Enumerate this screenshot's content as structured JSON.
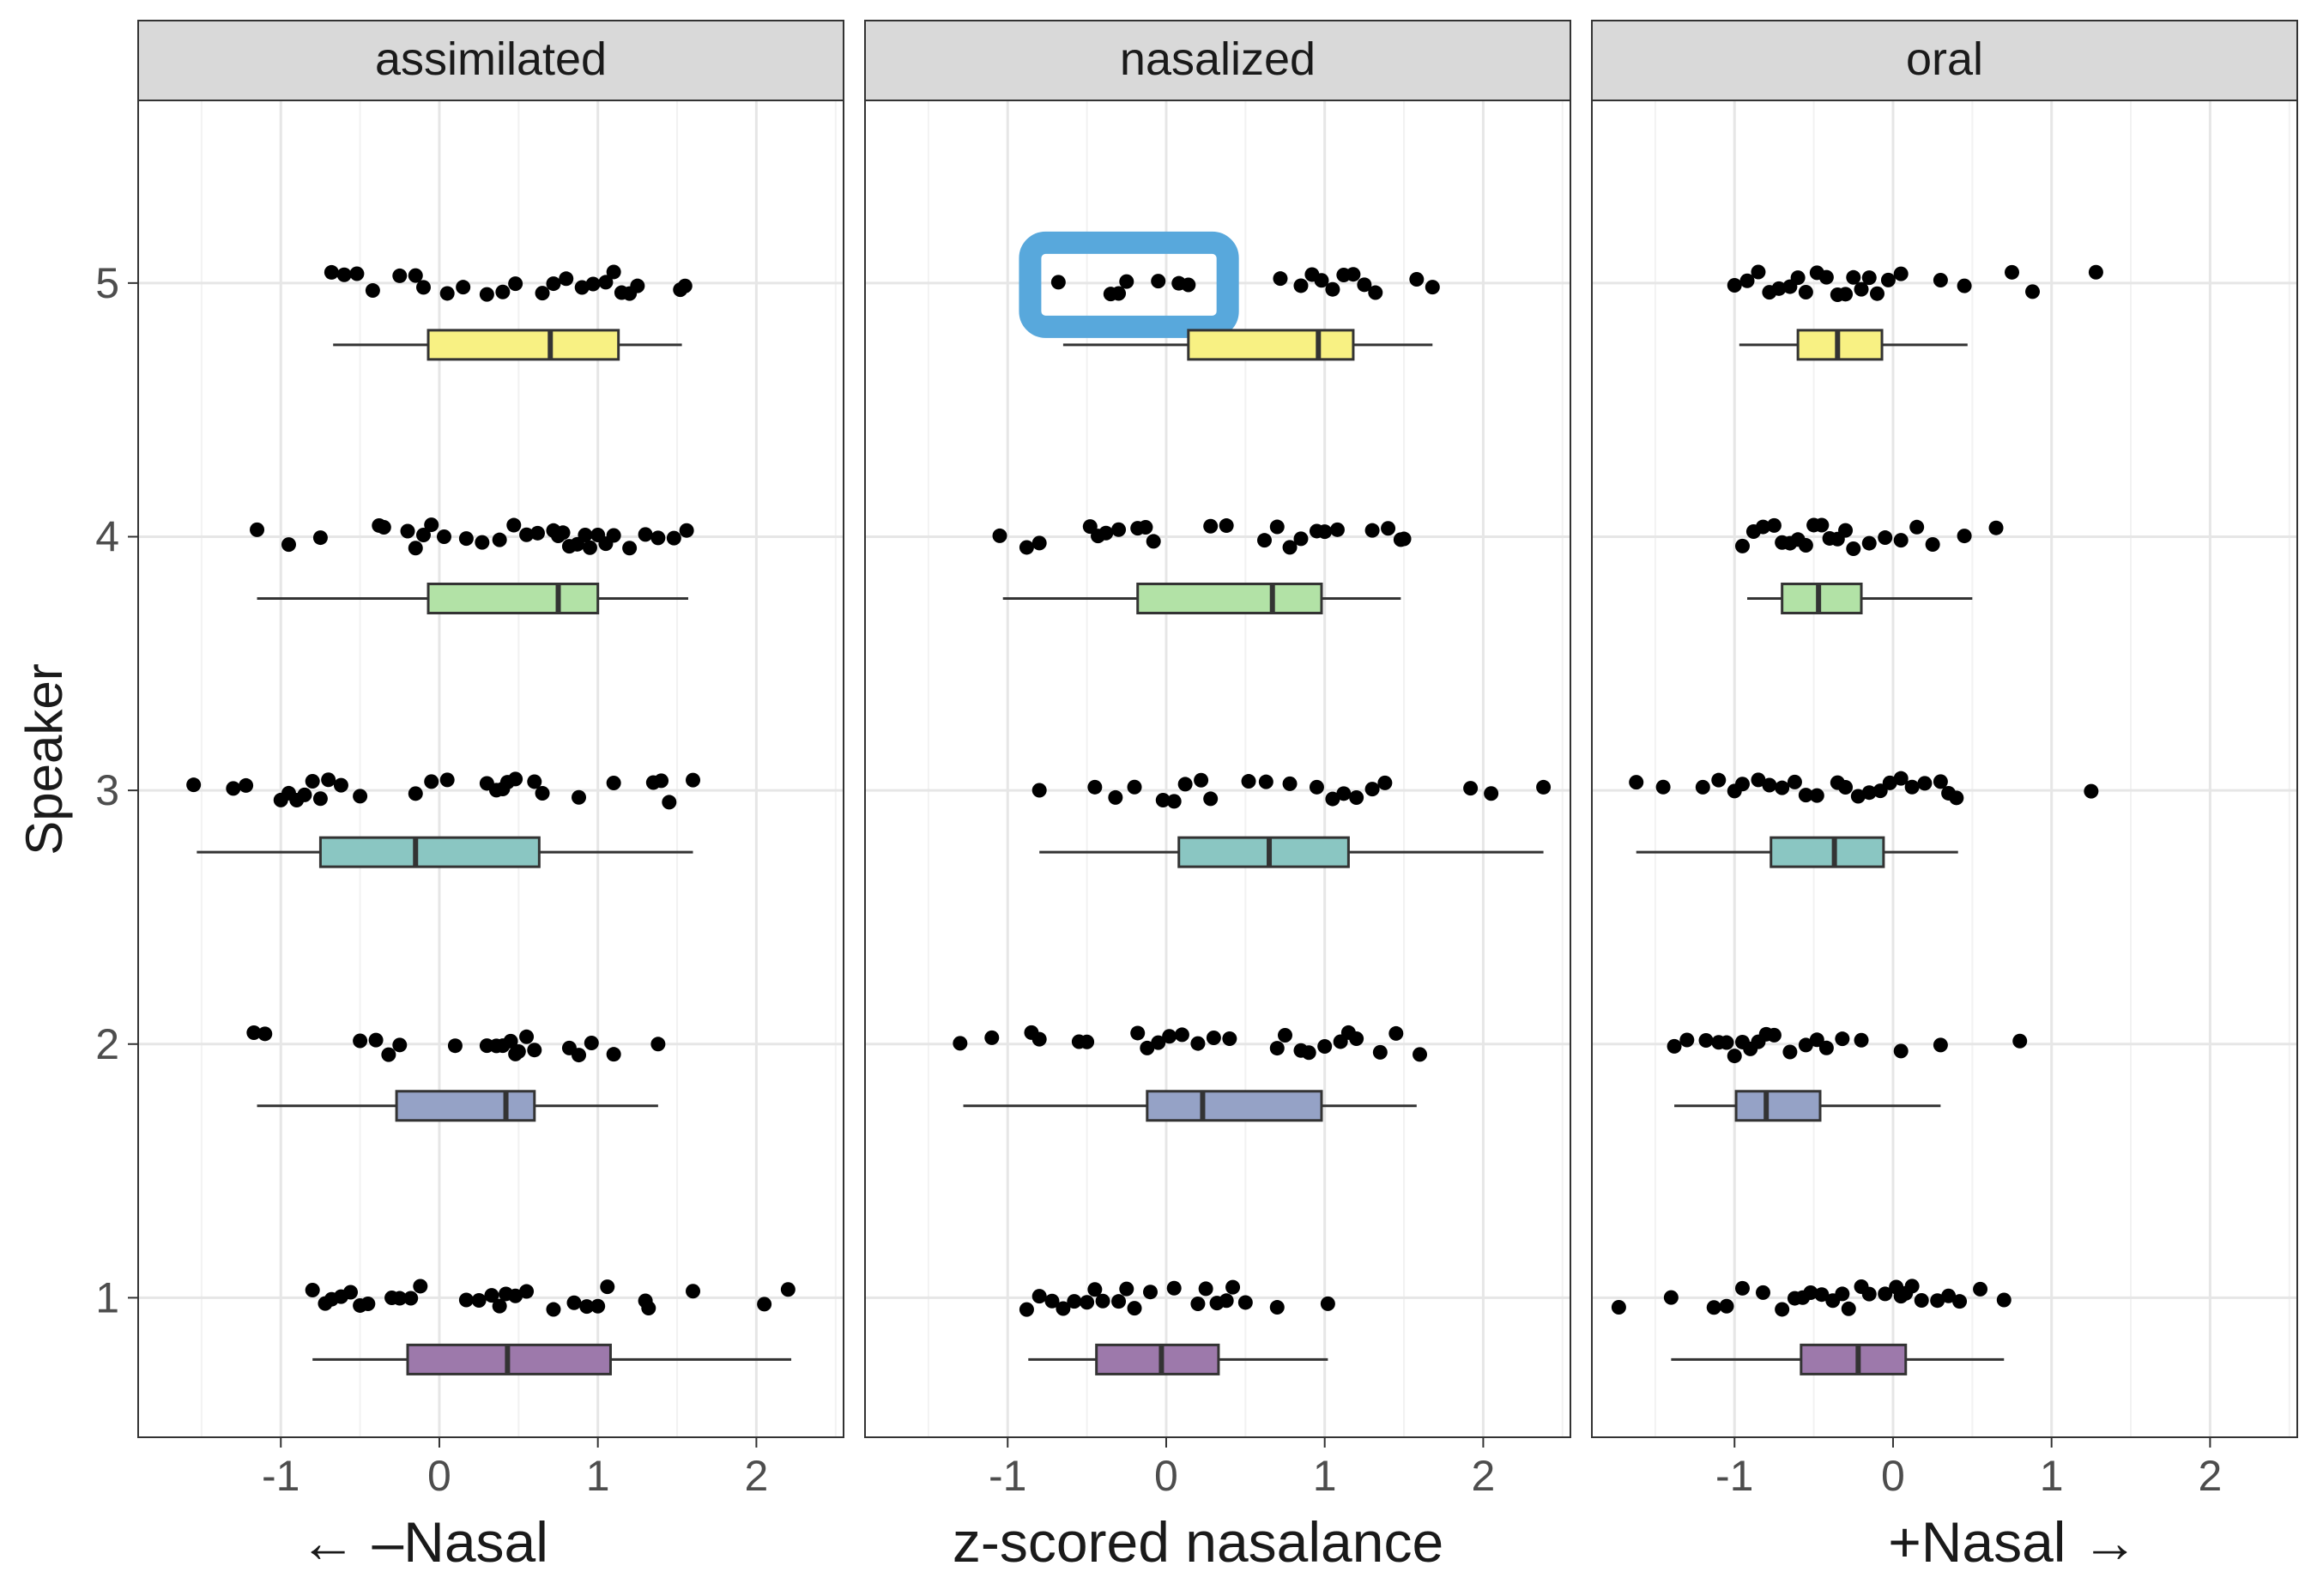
{
  "chart_data": {
    "type": "boxplot",
    "facets": [
      "assimilated",
      "nasalized",
      "oral"
    ],
    "y_title": "Speaker",
    "x_labels": {
      "left": "← –Nasal",
      "center": "z-scored nasalance",
      "right": "+Nasal →"
    },
    "x_ticks": [
      -1,
      0,
      1,
      2
    ],
    "x_tick_labels": [
      "-1",
      "0",
      "1",
      "2"
    ],
    "y_ticks": [
      1,
      2,
      3,
      4,
      5
    ],
    "y_tick_labels": [
      "1",
      "2",
      "3",
      "4",
      "5"
    ],
    "xlim": [
      -1.9,
      2.55
    ],
    "ylim": [
      0.45,
      5.72
    ],
    "grid": true,
    "series_colors": {
      "1": "#9d79ab",
      "2": "#95a2c6",
      "3": "#8ac6c2",
      "4": "#b2e2a6",
      "5": "#f8f183"
    },
    "highlight": {
      "facet": "nasalized",
      "speaker": 5,
      "x_range": [
        -0.75,
        0.15
      ],
      "color": "#58a8dc"
    },
    "panels": [
      {
        "facet": "assimilated",
        "speakers": [
          {
            "speaker": 1,
            "box": {
              "whisker_low": -0.8,
              "q1": -0.2,
              "median": 0.43,
              "q3": 1.08,
              "whisker_high": 2.22
            },
            "points": [
              -0.8,
              -0.72,
              -0.68,
              -0.62,
              -0.56,
              -0.5,
              -0.45,
              -0.3,
              -0.25,
              -0.18,
              -0.12,
              0.17,
              0.25,
              0.33,
              0.38,
              0.42,
              0.48,
              0.55,
              0.72,
              0.85,
              0.93,
              1.0,
              1.06,
              1.3,
              1.32,
              1.6,
              2.05,
              2.2
            ]
          },
          {
            "speaker": 2,
            "box": {
              "whisker_low": -1.15,
              "q1": -0.27,
              "median": 0.42,
              "q3": 0.6,
              "whisker_high": 1.38
            },
            "points": [
              -1.17,
              -1.1,
              -0.5,
              -0.4,
              -0.32,
              -0.25,
              0.1,
              0.3,
              0.36,
              0.4,
              0.45,
              0.48,
              0.5,
              0.55,
              0.6,
              0.82,
              0.88,
              0.96,
              1.1,
              1.38
            ]
          },
          {
            "speaker": 3,
            "box": {
              "whisker_low": -1.53,
              "q1": -0.75,
              "median": -0.15,
              "q3": 0.63,
              "whisker_high": 1.6
            },
            "points": [
              -1.55,
              -1.3,
              -1.22,
              -1.0,
              -0.95,
              -0.9,
              -0.85,
              -0.8,
              -0.75,
              -0.7,
              -0.62,
              -0.5,
              -0.15,
              -0.05,
              0.05,
              0.3,
              0.36,
              0.4,
              0.43,
              0.48,
              0.6,
              0.65,
              0.88,
              1.1,
              1.35,
              1.4,
              1.45,
              1.6
            ]
          },
          {
            "speaker": 4,
            "box": {
              "whisker_low": -1.15,
              "q1": -0.07,
              "median": 0.75,
              "q3": 1.0,
              "whisker_high": 1.57
            },
            "points": [
              -1.15,
              -0.95,
              -0.75,
              -0.38,
              -0.35,
              -0.2,
              -0.15,
              -0.1,
              -0.05,
              0.03,
              0.17,
              0.27,
              0.38,
              0.47,
              0.55,
              0.62,
              0.72,
              0.75,
              0.78,
              0.82,
              0.87,
              0.92,
              0.95,
              1.0,
              1.05,
              1.1,
              1.2,
              1.3,
              1.38,
              1.48,
              1.56
            ]
          },
          {
            "speaker": 5,
            "box": {
              "whisker_low": -0.67,
              "q1": -0.07,
              "median": 0.7,
              "q3": 1.13,
              "whisker_high": 1.53
            },
            "points": [
              -0.68,
              -0.6,
              -0.52,
              -0.42,
              -0.25,
              -0.15,
              -0.1,
              0.05,
              0.15,
              0.3,
              0.4,
              0.48,
              0.65,
              0.72,
              0.8,
              0.9,
              0.97,
              1.05,
              1.1,
              1.15,
              1.2,
              1.25,
              1.52,
              1.55
            ]
          }
        ]
      },
      {
        "facet": "nasalized",
        "speakers": [
          {
            "speaker": 1,
            "box": {
              "whisker_low": -0.87,
              "q1": -0.44,
              "median": -0.03,
              "q3": 0.33,
              "whisker_high": 1.02
            },
            "points": [
              -0.88,
              -0.8,
              -0.72,
              -0.65,
              -0.58,
              -0.5,
              -0.45,
              -0.4,
              -0.3,
              -0.25,
              -0.2,
              -0.1,
              0.05,
              0.2,
              0.25,
              0.32,
              0.38,
              0.42,
              0.5,
              0.7,
              1.02
            ]
          },
          {
            "speaker": 2,
            "box": {
              "whisker_low": -1.28,
              "q1": -0.12,
              "median": 0.23,
              "q3": 0.98,
              "whisker_high": 1.58
            },
            "points": [
              -1.3,
              -1.1,
              -0.85,
              -0.8,
              -0.55,
              -0.5,
              -0.18,
              -0.12,
              -0.05,
              0.02,
              0.1,
              0.2,
              0.3,
              0.4,
              0.7,
              0.75,
              0.85,
              0.9,
              1.0,
              1.1,
              1.15,
              1.2,
              1.35,
              1.45,
              1.6
            ]
          },
          {
            "speaker": 3,
            "box": {
              "whisker_low": -0.8,
              "q1": 0.08,
              "median": 0.65,
              "q3": 1.15,
              "whisker_high": 2.38
            },
            "points": [
              -0.8,
              -0.45,
              -0.32,
              -0.2,
              -0.02,
              0.05,
              0.12,
              0.22,
              0.28,
              0.52,
              0.63,
              0.78,
              0.95,
              1.05,
              1.12,
              1.2,
              1.3,
              1.38,
              1.92,
              2.05,
              2.38
            ]
          },
          {
            "speaker": 4,
            "box": {
              "whisker_low": -1.03,
              "q1": -0.18,
              "median": 0.67,
              "q3": 0.98,
              "whisker_high": 1.48
            },
            "points": [
              -1.05,
              -0.88,
              -0.8,
              -0.48,
              -0.43,
              -0.38,
              -0.3,
              -0.18,
              -0.13,
              -0.08,
              0.28,
              0.38,
              0.62,
              0.7,
              0.78,
              0.85,
              0.95,
              1.0,
              1.08,
              1.3,
              1.4,
              1.48,
              1.5
            ]
          },
          {
            "speaker": 5,
            "box": {
              "whisker_low": -0.65,
              "q1": 0.14,
              "median": 0.96,
              "q3": 1.18,
              "whisker_high": 1.68
            },
            "points": [
              -0.68,
              -0.35,
              -0.3,
              -0.25,
              -0.05,
              0.08,
              0.14,
              0.72,
              0.85,
              0.92,
              0.98,
              1.05,
              1.12,
              1.18,
              1.25,
              1.32,
              1.58,
              1.68
            ]
          }
        ]
      },
      {
        "facet": "oral",
        "speakers": [
          {
            "speaker": 1,
            "box": {
              "whisker_low": -1.4,
              "q1": -0.58,
              "median": -0.22,
              "q3": 0.08,
              "whisker_high": 0.7
            },
            "points": [
              -1.73,
              -1.4,
              -1.13,
              -1.05,
              -0.95,
              -0.82,
              -0.7,
              -0.62,
              -0.57,
              -0.52,
              -0.45,
              -0.38,
              -0.32,
              -0.28,
              -0.2,
              -0.15,
              -0.05,
              0.02,
              0.05,
              0.08,
              0.12,
              0.18,
              0.28,
              0.35,
              0.42,
              0.55,
              0.7
            ]
          },
          {
            "speaker": 2,
            "box": {
              "whisker_low": -1.38,
              "q1": -0.99,
              "median": -0.8,
              "q3": -0.46,
              "whisker_high": 0.3
            },
            "points": [
              -1.38,
              -1.3,
              -1.18,
              -1.1,
              -1.05,
              -1.0,
              -0.95,
              -0.9,
              -0.85,
              -0.8,
              -0.75,
              -0.65,
              -0.55,
              -0.48,
              -0.42,
              -0.32,
              -0.2,
              0.05,
              0.3,
              0.8
            ]
          },
          {
            "speaker": 3,
            "box": {
              "whisker_low": -1.62,
              "q1": -0.77,
              "median": -0.37,
              "q3": -0.06,
              "whisker_high": 0.41
            },
            "points": [
              -1.62,
              -1.45,
              -1.2,
              -1.1,
              -1.0,
              -0.95,
              -0.85,
              -0.78,
              -0.7,
              -0.62,
              -0.55,
              -0.48,
              -0.35,
              -0.3,
              -0.22,
              -0.15,
              -0.08,
              -0.02,
              0.05,
              0.12,
              0.2,
              0.3,
              0.35,
              0.4,
              1.25
            ]
          },
          {
            "speaker": 4,
            "box": {
              "whisker_low": -0.92,
              "q1": -0.7,
              "median": -0.47,
              "q3": -0.2,
              "whisker_high": 0.5
            },
            "points": [
              -0.95,
              -0.88,
              -0.82,
              -0.75,
              -0.7,
              -0.65,
              -0.6,
              -0.55,
              -0.5,
              -0.45,
              -0.4,
              -0.35,
              -0.3,
              -0.25,
              -0.15,
              -0.05,
              0.05,
              0.15,
              0.25,
              0.45,
              0.65
            ]
          },
          {
            "speaker": 5,
            "box": {
              "whisker_low": -0.97,
              "q1": -0.6,
              "median": -0.35,
              "q3": -0.07,
              "whisker_high": 0.47
            },
            "points": [
              -1.0,
              -0.92,
              -0.85,
              -0.78,
              -0.72,
              -0.65,
              -0.6,
              -0.55,
              -0.48,
              -0.42,
              -0.35,
              -0.3,
              -0.25,
              -0.2,
              -0.15,
              -0.1,
              -0.03,
              0.05,
              0.3,
              0.45,
              0.75,
              0.88,
              1.28
            ]
          }
        ]
      }
    ]
  }
}
